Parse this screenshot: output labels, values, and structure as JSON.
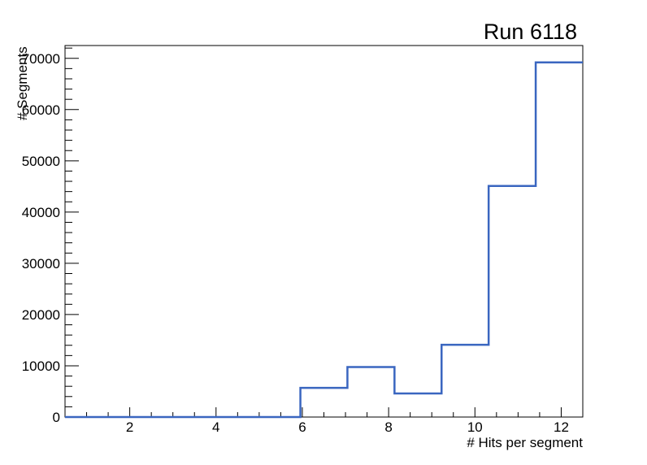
{
  "window": {
    "background": "#ffffff"
  },
  "chart_data": {
    "type": "step-histogram",
    "title": "Run 6118",
    "xlabel": "# Hits per segment",
    "ylabel": "# Segments",
    "xlim": [
      0.5,
      12.5
    ],
    "ylim": [
      0,
      72500
    ],
    "bin_edges": [
      0.5,
      1.591,
      2.682,
      3.773,
      4.864,
      5.955,
      7.045,
      8.136,
      9.227,
      10.318,
      11.409,
      12.5
    ],
    "counts": [
      0,
      0,
      0,
      0,
      0,
      5700,
      9750,
      4600,
      14100,
      45100,
      69200
    ],
    "x_major_ticks": [
      2,
      4,
      6,
      8,
      10,
      12
    ],
    "x_major_tick_labels": [
      "2",
      "4",
      "6",
      "8",
      "10",
      "12"
    ],
    "x_minor_tick_step": 0.5,
    "y_major_ticks": [
      0,
      10000,
      20000,
      30000,
      40000,
      50000,
      60000,
      70000
    ],
    "y_major_tick_labels": [
      "0",
      "10000",
      "20000",
      "30000",
      "40000",
      "50000",
      "60000",
      "70000"
    ],
    "y_minor_tick_step": 2000,
    "grid": false,
    "legend": null,
    "line_color": "#3a66c0",
    "frame_color": "#000000",
    "text_color": "#000000"
  }
}
